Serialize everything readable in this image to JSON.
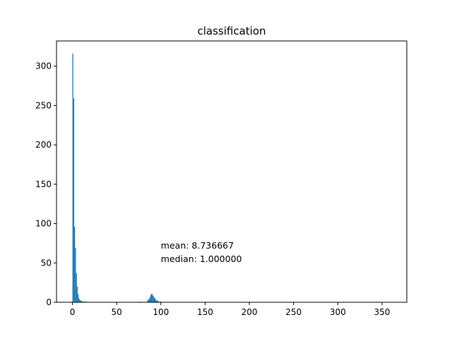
{
  "chart_data": {
    "type": "bar",
    "title": "classification",
    "xlabel": "",
    "ylabel": "",
    "xlim": [
      -18,
      378
    ],
    "ylim": [
      0,
      332
    ],
    "xticks": [
      0,
      50,
      100,
      150,
      200,
      250,
      300,
      350
    ],
    "yticks": [
      0,
      50,
      100,
      150,
      200,
      250,
      300
    ],
    "bar_color": "#1f77b4",
    "bin_width": 1,
    "bins": [
      {
        "x": 0,
        "value": 316
      },
      {
        "x": 1,
        "value": 259
      },
      {
        "x": 2,
        "value": 96
      },
      {
        "x": 3,
        "value": 69
      },
      {
        "x": 4,
        "value": 37
      },
      {
        "x": 5,
        "value": 20
      },
      {
        "x": 6,
        "value": 10
      },
      {
        "x": 7,
        "value": 5
      },
      {
        "x": 8,
        "value": 3
      },
      {
        "x": 9,
        "value": 2
      },
      {
        "x": 10,
        "value": 2
      },
      {
        "x": 11,
        "value": 1
      },
      {
        "x": 13,
        "value": 1
      },
      {
        "x": 15,
        "value": 1
      },
      {
        "x": 76,
        "value": 1
      },
      {
        "x": 84,
        "value": 1
      },
      {
        "x": 85,
        "value": 3
      },
      {
        "x": 86,
        "value": 4
      },
      {
        "x": 87,
        "value": 6
      },
      {
        "x": 88,
        "value": 9
      },
      {
        "x": 89,
        "value": 11
      },
      {
        "x": 90,
        "value": 10
      },
      {
        "x": 91,
        "value": 8
      },
      {
        "x": 92,
        "value": 6
      },
      {
        "x": 93,
        "value": 5
      },
      {
        "x": 94,
        "value": 3
      },
      {
        "x": 95,
        "value": 2
      },
      {
        "x": 96,
        "value": 2
      },
      {
        "x": 97,
        "value": 1
      },
      {
        "x": 99,
        "value": 1
      }
    ],
    "annotations": [
      {
        "text": "mean: 8.736667",
        "x": 100,
        "y": 68
      },
      {
        "text": "median: 1.000000",
        "x": 100,
        "y": 51
      }
    ]
  }
}
